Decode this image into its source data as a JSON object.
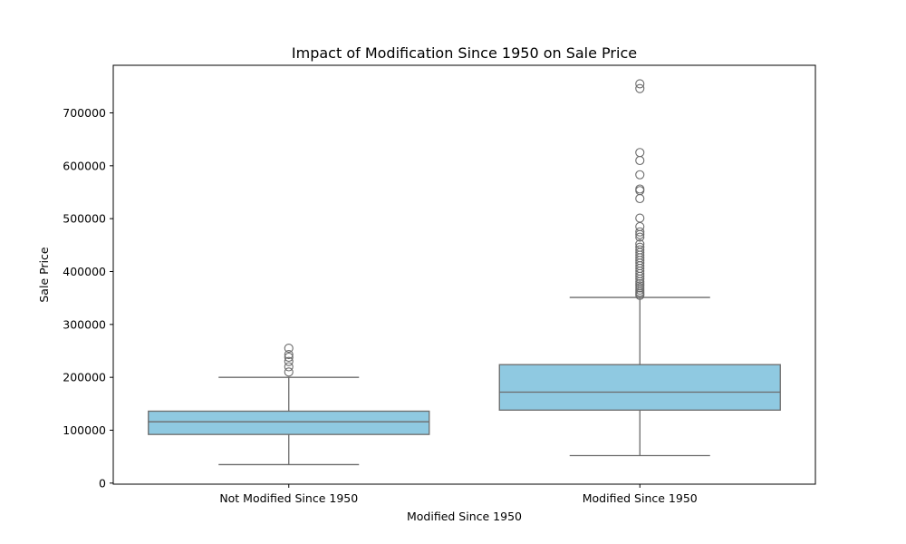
{
  "chart_data": {
    "type": "box",
    "title": "Impact of Modification Since 1950 on Sale Price",
    "xlabel": "Modified Since 1950",
    "ylabel": "Sale Price",
    "categories": [
      "Not Modified Since 1950",
      "Modified Since 1950"
    ],
    "ylim": [
      -2000,
      790000
    ],
    "yticks": [
      0,
      100000,
      200000,
      300000,
      400000,
      500000,
      600000,
      700000
    ],
    "grid": false,
    "box_color": "#8fc9e1",
    "line_color": "#6b6b6b",
    "boxes": [
      {
        "category": "Not Modified Since 1950",
        "whisker_low": 35000,
        "q1": 92000,
        "median": 116000,
        "q3": 136000,
        "whisker_high": 200000,
        "outliers": [
          210000,
          220000,
          230000,
          238000,
          243000,
          255000
        ]
      },
      {
        "category": "Modified Since 1950",
        "whisker_low": 52000,
        "q1": 138000,
        "median": 172000,
        "q3": 224000,
        "whisker_high": 351000,
        "outliers": [
          355000,
          358000,
          361000,
          365000,
          369000,
          373000,
          377000,
          381000,
          386000,
          391000,
          396000,
          401000,
          406000,
          411000,
          416000,
          421000,
          426000,
          431000,
          436000,
          441000,
          446000,
          452000,
          465000,
          470000,
          475000,
          485000,
          501000,
          538000,
          553000,
          556000,
          583000,
          610000,
          625000,
          746000,
          755000
        ]
      }
    ]
  }
}
